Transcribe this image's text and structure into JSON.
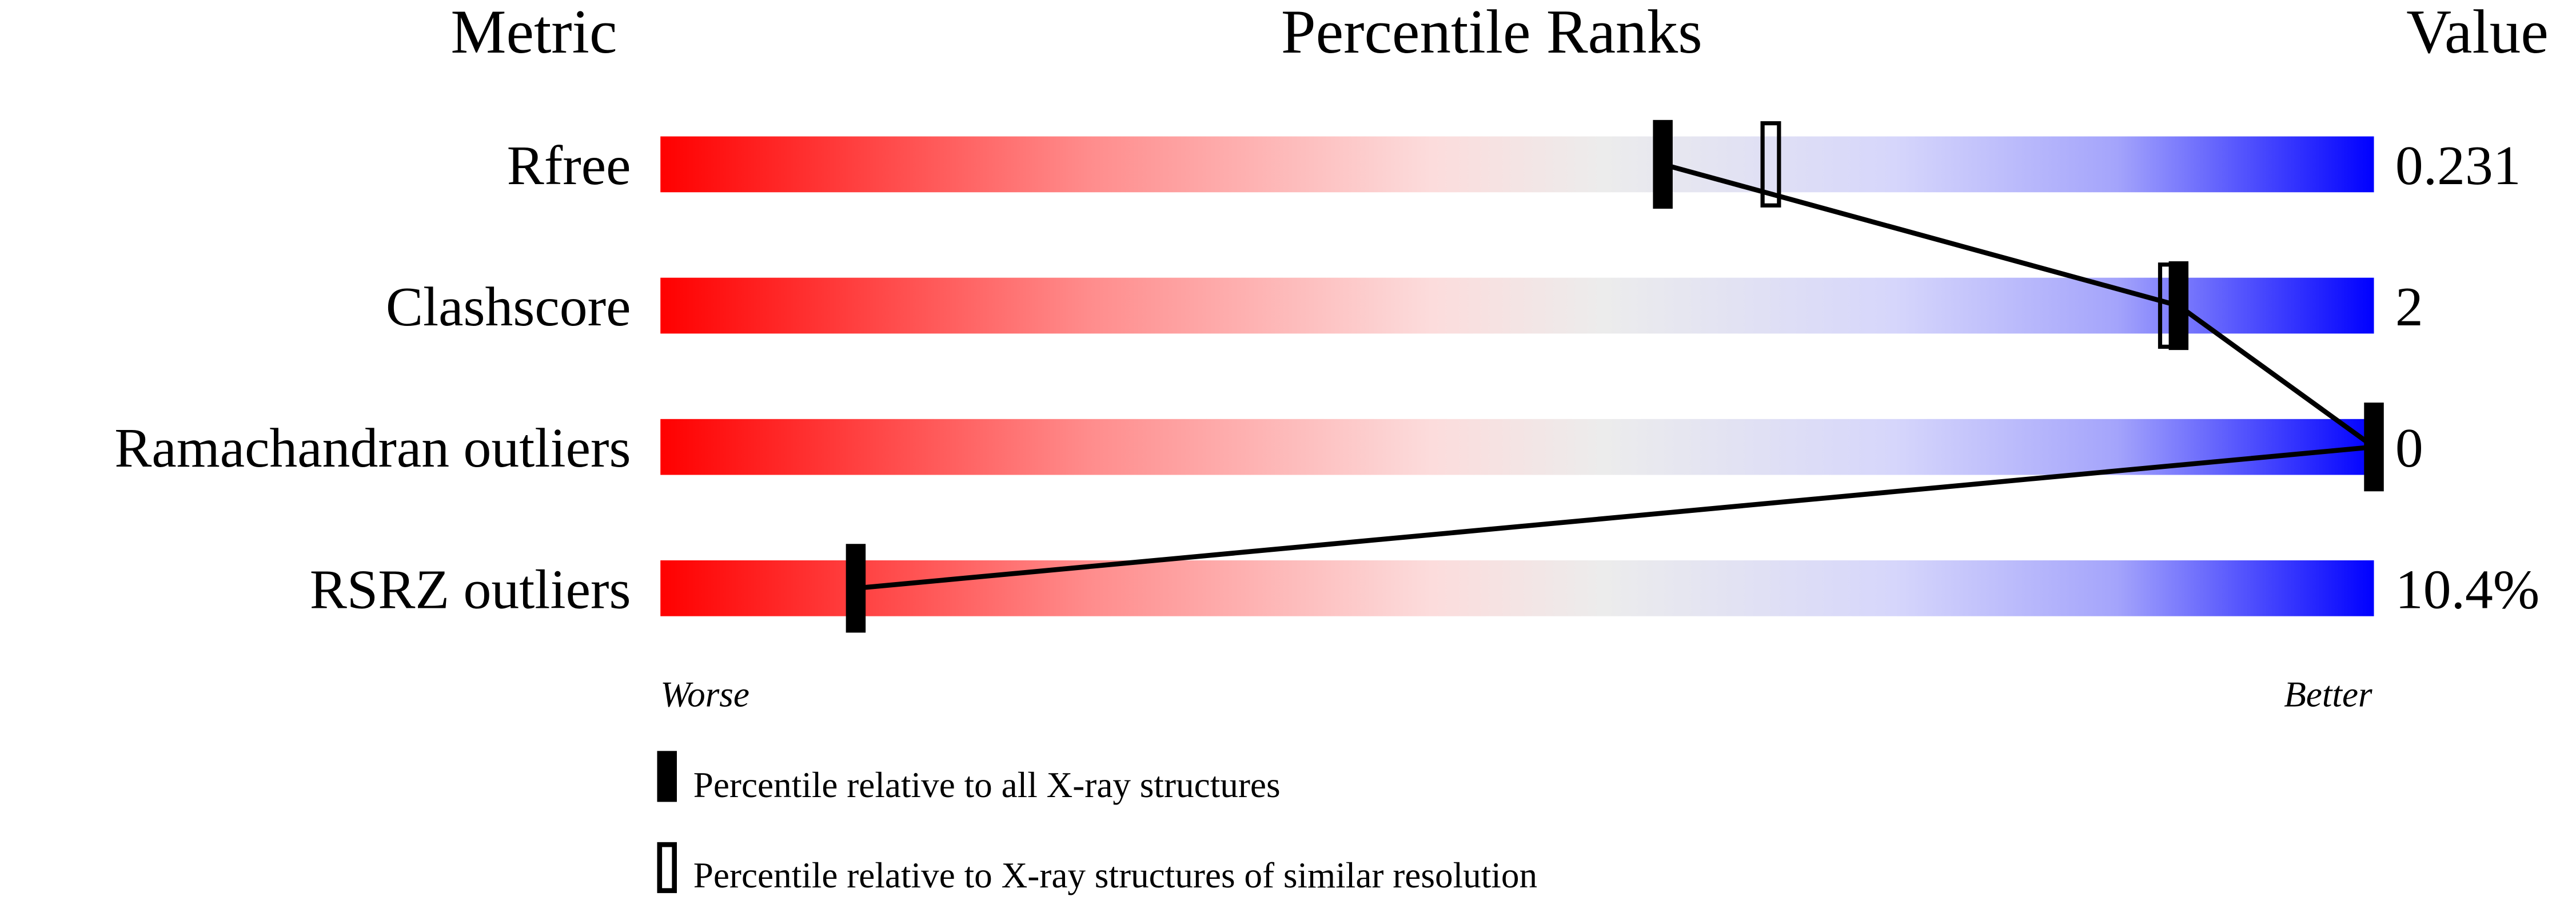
{
  "chart_data": {
    "type": "percentile-slider",
    "headers": {
      "metric": "Metric",
      "ranks": "Percentile Ranks",
      "value": "Value"
    },
    "axis": {
      "left": "Worse",
      "right": "Better",
      "range": [
        0,
        100
      ]
    },
    "gradient_colors": [
      "#ff0000",
      "#eeeeee",
      "#dcdcfa",
      "#0000ff"
    ],
    "rows": [
      {
        "metric": "Rfree",
        "value": "0.231",
        "percentile_all": 58.5,
        "percentile_similar": 64.8
      },
      {
        "metric": "Clashscore",
        "value": "2",
        "percentile_all": 88.6,
        "percentile_similar": 88.0
      },
      {
        "metric": "Ramachandran outliers",
        "value": "0",
        "percentile_all": 100,
        "percentile_similar": null
      },
      {
        "metric": "RSRZ outliers",
        "value": "10.4%",
        "percentile_all": 11.4,
        "percentile_similar": null
      }
    ],
    "legend": [
      {
        "marker": "filled",
        "label": "Percentile relative to all X-ray structures"
      },
      {
        "marker": "open",
        "label": "Percentile relative to X-ray structures of similar resolution"
      }
    ]
  }
}
